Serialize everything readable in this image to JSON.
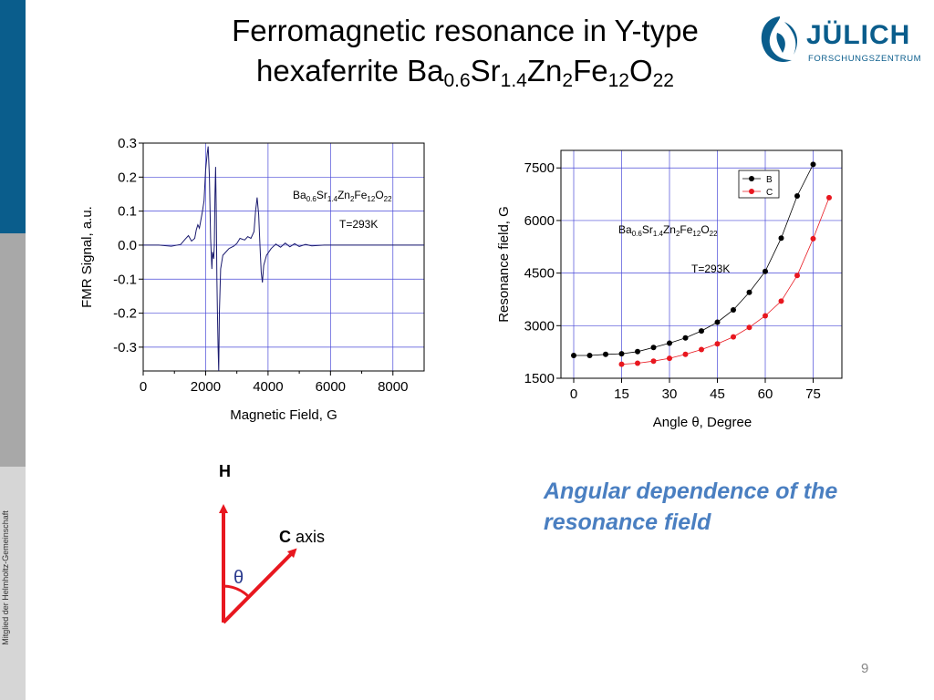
{
  "slide": {
    "title_line1": "Ferromagnetic resonance in Y-type",
    "title_line2_parts": [
      "hexaferrite Ba",
      "0.6",
      "Sr",
      "1.4",
      "Zn",
      "2",
      "Fe",
      "12",
      "O",
      "22"
    ],
    "logo_word": "JÜLICH",
    "logo_sub": "FORSCHUNGSZENTRUM",
    "side_text": "Mitglied der Helmholtz-Gemeinschaft",
    "caption": "Angular dependence of the resonance field",
    "page_number": "9",
    "colors": {
      "brand": "#0a5d8c",
      "caption": "#4a7fc1",
      "arrow": "#e8171f"
    }
  },
  "diagram": {
    "h_label": "H",
    "c_label_bold": "C",
    "c_label_rest": " axis",
    "theta": "θ"
  },
  "chart_data": [
    {
      "type": "line",
      "xlabel": "Magnetic Field, G",
      "ylabel": "FMR Signal, a.u.",
      "xlim": [
        0,
        9000
      ],
      "ylim": [
        -0.37,
        0.3
      ],
      "x_ticks": [
        0,
        2000,
        4000,
        6000,
        8000
      ],
      "y_ticks": [
        0.3,
        0.2,
        0.1,
        0.0,
        -0.1,
        -0.2,
        -0.3
      ],
      "y_tick_labels": [
        "0.3",
        "0.2",
        "0.1",
        "0.0",
        "-0.1",
        "-0.2",
        "-0.3"
      ],
      "grid": true,
      "annotation_formula_parts": [
        "Ba",
        "0.6",
        "Sr",
        "1.4",
        "Zn",
        "2",
        "Fe",
        "12",
        "O",
        "22"
      ],
      "annotation_temp": "T=293K",
      "series": [
        {
          "color": "#1a1a6e",
          "points": [
            [
              0,
              0
            ],
            [
              500,
              0
            ],
            [
              900,
              -0.003
            ],
            [
              1200,
              0.002
            ],
            [
              1350,
              0.018
            ],
            [
              1450,
              0.028
            ],
            [
              1550,
              0.012
            ],
            [
              1650,
              0.02
            ],
            [
              1700,
              0.045
            ],
            [
              1750,
              0.06
            ],
            [
              1800,
              0.05
            ],
            [
              1850,
              0.075
            ],
            [
              1900,
              0.1
            ],
            [
              1950,
              0.13
            ],
            [
              2000,
              0.22
            ],
            [
              2050,
              0.27
            ],
            [
              2080,
              0.29
            ],
            [
              2120,
              0.2
            ],
            [
              2160,
              0.02
            ],
            [
              2200,
              -0.07
            ],
            [
              2220,
              -0.02
            ],
            [
              2260,
              -0.04
            ],
            [
              2280,
              0.0
            ],
            [
              2300,
              0.15
            ],
            [
              2320,
              0.23
            ],
            [
              2340,
              0.1
            ],
            [
              2360,
              -0.1
            ],
            [
              2380,
              -0.2
            ],
            [
              2400,
              -0.3
            ],
            [
              2420,
              -0.37
            ],
            [
              2440,
              -0.2
            ],
            [
              2480,
              -0.07
            ],
            [
              2550,
              -0.03
            ],
            [
              2650,
              -0.02
            ],
            [
              2750,
              -0.01
            ],
            [
              2900,
              -0.003
            ],
            [
              3000,
              0.005
            ],
            [
              3100,
              0.02
            ],
            [
              3250,
              0.015
            ],
            [
              3350,
              0.025
            ],
            [
              3450,
              0.02
            ],
            [
              3550,
              0.04
            ],
            [
              3600,
              0.1
            ],
            [
              3650,
              0.14
            ],
            [
              3700,
              0.09
            ],
            [
              3740,
              0.0
            ],
            [
              3780,
              -0.08
            ],
            [
              3820,
              -0.11
            ],
            [
              3860,
              -0.06
            ],
            [
              3950,
              -0.03
            ],
            [
              4100,
              -0.01
            ],
            [
              4250,
              0.003
            ],
            [
              4400,
              -0.006
            ],
            [
              4550,
              0.006
            ],
            [
              4700,
              -0.005
            ],
            [
              4850,
              0.004
            ],
            [
              5000,
              -0.004
            ],
            [
              5200,
              0.002
            ],
            [
              5400,
              -0.002
            ],
            [
              5800,
              0.0
            ],
            [
              6500,
              0.0
            ],
            [
              7500,
              0.0
            ],
            [
              9000,
              0.0
            ]
          ]
        }
      ]
    },
    {
      "type": "scatter",
      "xlabel": "Angle θ, Degree",
      "ylabel": "Resonance field, G",
      "xlim": [
        -4,
        84
      ],
      "ylim": [
        1500,
        8000
      ],
      "x_ticks": [
        0,
        15,
        30,
        45,
        60,
        75
      ],
      "y_ticks": [
        1500,
        3000,
        4500,
        6000,
        7500
      ],
      "grid": true,
      "legend_position": "top-right",
      "annotation_formula_parts": [
        "Ba",
        "0.6",
        "Sr",
        "1.4",
        "Zn",
        "2",
        "Fe",
        "12",
        "O",
        "22"
      ],
      "annotation_temp": "T=293K",
      "series": [
        {
          "name": "B",
          "color": "#000000",
          "x": [
            0,
            5,
            10,
            15,
            20,
            25,
            30,
            35,
            40,
            45,
            50,
            55,
            60,
            65,
            70,
            75
          ],
          "y": [
            2150,
            2150,
            2180,
            2200,
            2260,
            2380,
            2500,
            2650,
            2850,
            3100,
            3450,
            3950,
            4550,
            5500,
            6700,
            7600
          ]
        },
        {
          "name": "C",
          "color": "#e8171f",
          "x": [
            15,
            20,
            25,
            30,
            35,
            40,
            45,
            50,
            55,
            60,
            65,
            70,
            75,
            80
          ],
          "y": [
            1900,
            1930,
            1990,
            2070,
            2180,
            2320,
            2480,
            2680,
            2950,
            3280,
            3700,
            4430,
            5480,
            6650
          ]
        }
      ]
    }
  ]
}
